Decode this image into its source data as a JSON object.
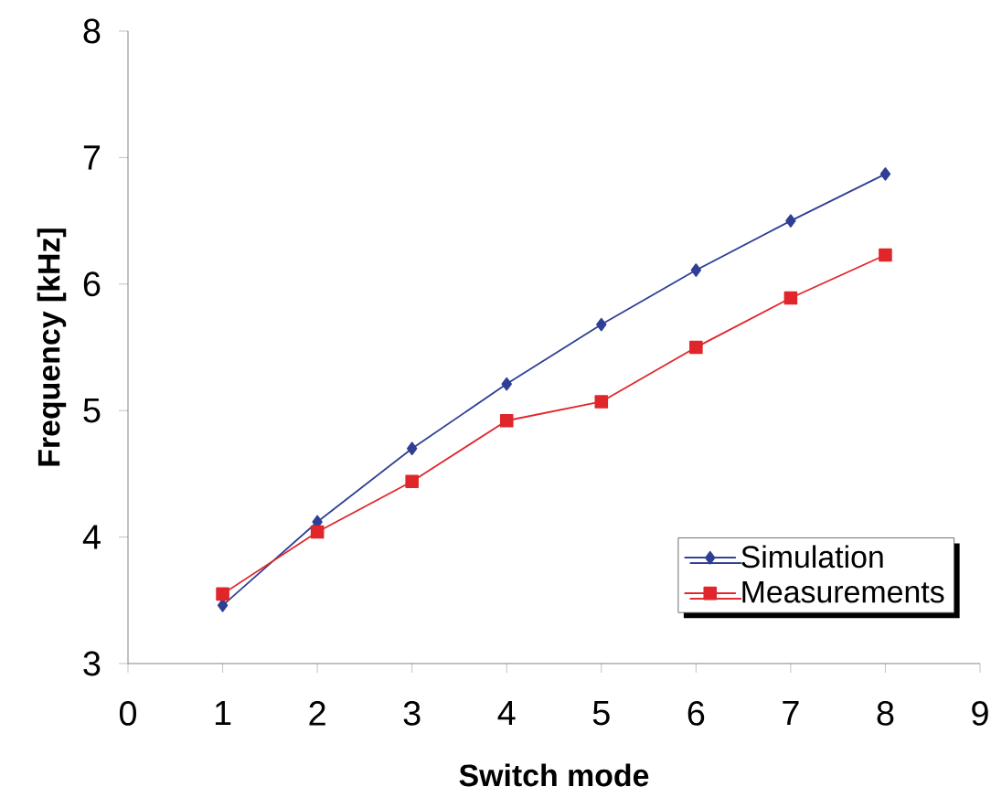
{
  "chart_data": {
    "type": "line",
    "xlabel": "Switch mode",
    "ylabel": "Frequency [kHz]",
    "x": [
      1,
      2,
      3,
      4,
      5,
      6,
      7,
      8
    ],
    "series": [
      {
        "name": "Simulation",
        "color": "#2e3f95",
        "marker": "diamond",
        "values": [
          3.46,
          4.12,
          4.7,
          5.21,
          5.68,
          6.11,
          6.5,
          6.87
        ]
      },
      {
        "name": "Measurements",
        "color": "#e0262a",
        "marker": "square",
        "values": [
          3.55,
          4.04,
          4.44,
          4.92,
          5.07,
          5.5,
          5.89,
          6.23
        ]
      }
    ],
    "xlim": [
      0,
      9
    ],
    "ylim": [
      3,
      8
    ],
    "xticks": [
      0,
      1,
      2,
      3,
      4,
      5,
      6,
      7,
      8,
      9
    ],
    "yticks": [
      3,
      4,
      5,
      6,
      7,
      8
    ],
    "grid": false,
    "legend": "bottom right",
    "line_style": "solid"
  }
}
